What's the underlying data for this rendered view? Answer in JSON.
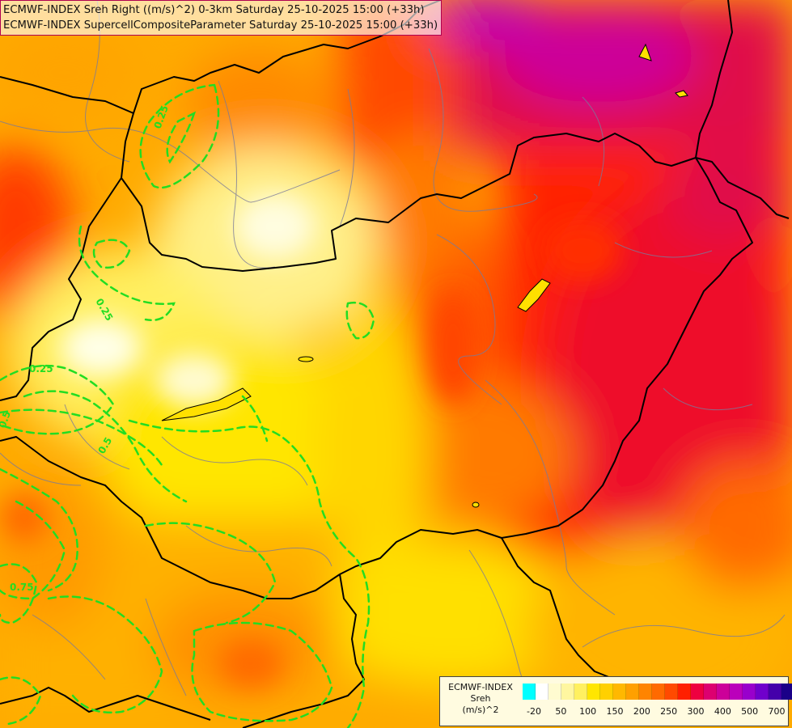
{
  "header": {
    "line1": "ECMWF-INDEX Sreh Right ((m/s)^2) 0-3km Saturday 25-10-2025 15:00 (+33h)",
    "line2": "ECMWF-INDEX SupercellCompositeParameter Saturday 25-10-2025 15:00 (+33h)"
  },
  "map": {
    "contour_color": "#22dd22",
    "contour_labels": [
      "0.25",
      "0.25",
      "0.25",
      "0.5",
      "0.5",
      "0.75"
    ]
  },
  "legend": {
    "title_lines": [
      "ECMWF-INDEX",
      "Sreh",
      "(m/s)^2"
    ],
    "colors": [
      "#00ffff",
      "#ffffff",
      "#fffbd0",
      "#fff6a0",
      "#fff060",
      "#ffe600",
      "#ffd000",
      "#ffb800",
      "#ffa000",
      "#ff8400",
      "#ff6a00",
      "#ff4a00",
      "#ff2000",
      "#ee0040",
      "#dd0070",
      "#cc0099",
      "#bb00bb",
      "#9900cc",
      "#7000cc",
      "#4400aa",
      "#1a0088"
    ],
    "tick_labels": [
      "-20",
      "50",
      "100",
      "150",
      "200",
      "250",
      "300",
      "400",
      "500",
      "700"
    ]
  }
}
